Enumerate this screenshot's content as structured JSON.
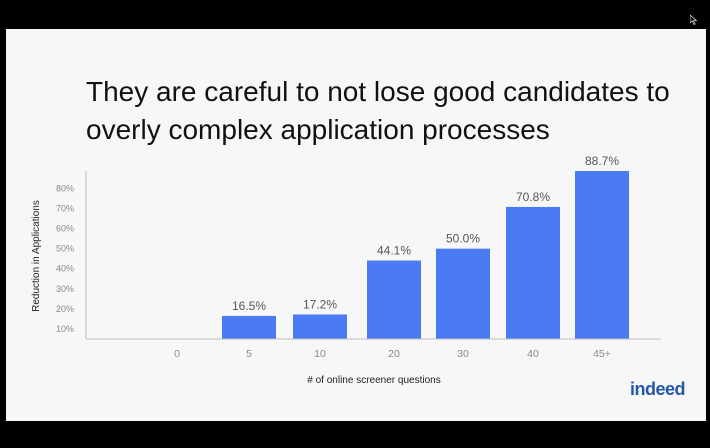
{
  "title": {
    "line1": "They are careful to not lose good candidates to",
    "line2": "overly complex application processes"
  },
  "brand": {
    "logo_text": "indeed"
  },
  "colors": {
    "bar": "#4a7bf2",
    "background": "#f7f7f7",
    "letterbox": "#000000"
  },
  "chart_data": {
    "type": "bar",
    "categories": [
      "0",
      "5",
      "10",
      "20",
      "30",
      "40",
      "45+"
    ],
    "values": [
      null,
      16.5,
      17.2,
      44.1,
      50.0,
      70.8,
      88.7
    ],
    "data_labels": [
      "",
      "16.5%",
      "17.2%",
      "44.1%",
      "50.0%",
      "70.8%",
      "88.7%"
    ],
    "xlabel": "# of online screener questions",
    "ylabel": "Reduction in Applications",
    "yticks": [
      "10%",
      "20%",
      "30%",
      "40%",
      "50%",
      "60%",
      "70%",
      "80%"
    ],
    "ytick_values": [
      10,
      20,
      30,
      40,
      50,
      60,
      70,
      80
    ],
    "ylim": [
      5,
      88.7
    ],
    "grid": false,
    "legend": "none"
  }
}
